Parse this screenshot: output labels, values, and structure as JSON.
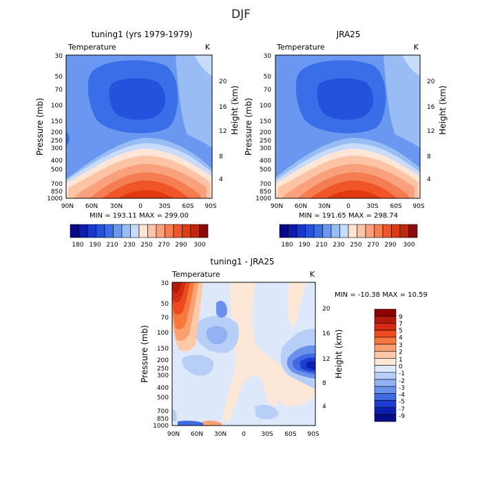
{
  "page": {
    "title": "DJF"
  },
  "chart_data": [
    {
      "type": "heatmap",
      "title": "tuning1 (yrs 1979-1979)",
      "subtitle_left": "Temperature",
      "subtitle_right": "K",
      "ylabel": "Pressure (mb)",
      "ylabel_right": "Height (km)",
      "x_ticks": [
        "90N",
        "60N",
        "30N",
        "0",
        "30S",
        "60S",
        "90S"
      ],
      "y_ticks": [
        "30",
        "50",
        "70",
        "100",
        "150",
        "200",
        "250",
        "300",
        "400",
        "500",
        "700",
        "850",
        "1000"
      ],
      "y_ticks_right": [
        "20",
        "16",
        "12",
        "8",
        "4"
      ],
      "stats": "MIN = 193.11   MAX = 299.00",
      "colorbar_labels": [
        "180",
        "190",
        "210",
        "230",
        "250",
        "270",
        "290",
        "300"
      ]
    },
    {
      "type": "heatmap",
      "title": "JRA25",
      "subtitle_left": "Temperature",
      "subtitle_right": "K",
      "ylabel": "Pressure (mb)",
      "ylabel_right": "Height (km)",
      "x_ticks": [
        "90N",
        "60N",
        "30N",
        "0",
        "30S",
        "60S",
        "90S"
      ],
      "y_ticks": [
        "30",
        "50",
        "70",
        "100",
        "150",
        "200",
        "250",
        "300",
        "400",
        "500",
        "700",
        "850",
        "1000"
      ],
      "y_ticks_right": [
        "20",
        "16",
        "12",
        "8",
        "4"
      ],
      "stats": "MIN = 191.65   MAX = 298.74",
      "colorbar_labels": [
        "180",
        "190",
        "210",
        "230",
        "250",
        "270",
        "290",
        "300"
      ]
    },
    {
      "type": "heatmap",
      "title": "tuning1 - JRA25",
      "subtitle_left": "Temperature",
      "subtitle_right": "K",
      "ylabel": "Pressure (mb)",
      "ylabel_right": "Height (km)",
      "x_ticks": [
        "90N",
        "60N",
        "30N",
        "0",
        "30S",
        "60S",
        "90S"
      ],
      "y_ticks": [
        "30",
        "50",
        "70",
        "100",
        "150",
        "200",
        "250",
        "300",
        "400",
        "500",
        "700",
        "850",
        "1000"
      ],
      "y_ticks_right": [
        "20",
        "16",
        "12",
        "8",
        "4"
      ],
      "stats": "MIN = -10.38   MAX =  10.59",
      "colorbar_labels": [
        "9",
        "7",
        "5",
        "4",
        "3",
        "2",
        "1",
        "0",
        "-1",
        "-2",
        "-3",
        "-4",
        "-5",
        "-7",
        "-9"
      ]
    }
  ],
  "colors": {
    "abs_scale": [
      "#08088a",
      "#0d1ab5",
      "#1838cc",
      "#2452dd",
      "#3a6ee8",
      "#6a98f0",
      "#98bdf5",
      "#c8dcfa",
      "#fde6d6",
      "#fcc3a5",
      "#f9a07c",
      "#f57d52",
      "#f05528",
      "#e03a10",
      "#c0280c",
      "#8a0b0b"
    ],
    "diff_scale": [
      "#8c0000",
      "#b21a0a",
      "#d62a12",
      "#ed4a1f",
      "#f7783d",
      "#fba070",
      "#fdc9a7",
      "#fde8d8",
      "#dde9fb",
      "#b7cff7",
      "#92b2f2",
      "#6a91ec",
      "#3f6ae4",
      "#1e3cd2",
      "#0a1fae",
      "#080c86"
    ]
  }
}
